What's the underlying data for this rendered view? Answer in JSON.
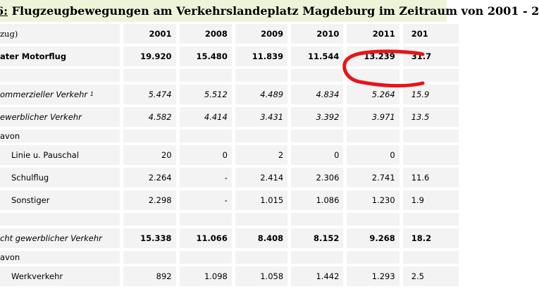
{
  "title": {
    "number": "6:",
    "text": "Flugzeugbewegungen am Verkehrslandeplatz Magdeburg im Zeitraum von 2001 - 2"
  },
  "table": {
    "header_label": "zug)",
    "years": [
      "2001",
      "2008",
      "2009",
      "2010",
      "2011",
      "201"
    ],
    "rows": [
      {
        "label": "ater Motorflug",
        "values": [
          "19.920",
          "15.480",
          "11.839",
          "11.544",
          "13.239",
          "31.7"
        ]
      },
      {
        "label": "",
        "values": [
          "",
          "",
          "",
          "",
          "",
          ""
        ]
      },
      {
        "label": "ommerzieller Verkehr",
        "sup": "1",
        "values": [
          "5.474",
          "5.512",
          "4.489",
          "4.834",
          "5.264",
          "15.9"
        ]
      },
      {
        "label": "ewerblicher Verkehr",
        "values": [
          "4.582",
          "4.414",
          "3.431",
          "3.392",
          "3.971",
          "13.5"
        ]
      },
      {
        "label": "avon",
        "values": [
          "",
          "",
          "",
          "",
          "",
          ""
        ]
      },
      {
        "label": "Linie u. Pauschal",
        "values": [
          "20",
          "0",
          "2",
          "0",
          "0",
          ""
        ]
      },
      {
        "label": "Schulflug",
        "values": [
          "2.264",
          "-",
          "2.414",
          "2.306",
          "2.741",
          "11.6"
        ]
      },
      {
        "label": "Sonstiger",
        "values": [
          "2.298",
          "-",
          "1.015",
          "1.086",
          "1.230",
          "1.9"
        ]
      },
      {
        "label": "",
        "values": [
          "",
          "",
          "",
          "",
          "",
          ""
        ]
      },
      {
        "label": "cht gewerblicher Verkehr",
        "values": [
          "15.338",
          "11.066",
          "8.408",
          "8.152",
          "9.268",
          "18.2"
        ]
      },
      {
        "label": "avon",
        "values": [
          "",
          "",
          "",
          "",
          "",
          ""
        ]
      },
      {
        "label": "Werkverkehr",
        "values": [
          "892",
          "1.098",
          "1.058",
          "1.442",
          "1.293",
          "2.5"
        ]
      }
    ]
  },
  "annotation": {
    "color": "#e8141b"
  },
  "colors": {
    "title_bg": "#eef4da",
    "cell_bg": "#f3f3f3"
  }
}
